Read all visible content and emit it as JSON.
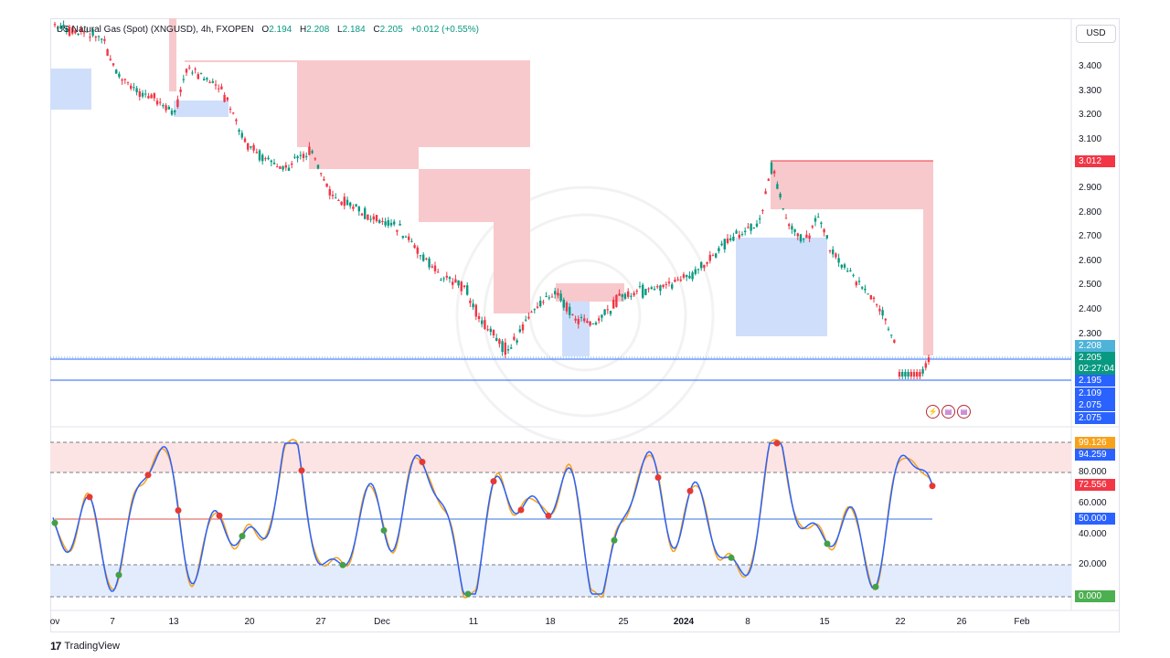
{
  "header": {
    "symbol": "US Natural Gas (Spot) (XNGUSD), 4h, FXOPEN",
    "o_key": "O",
    "o_val": "2.194",
    "h_key": "H",
    "h_val": "2.208",
    "l_key": "L",
    "l_val": "2.184",
    "c_key": "C",
    "c_val": "2.205",
    "change": "+0.012 (+0.55%)"
  },
  "currency": "USD",
  "price_axis": [
    "3.400",
    "3.300",
    "3.200",
    "3.100",
    "2.900",
    "2.800",
    "2.700",
    "2.600",
    "2.500",
    "2.400",
    "2.300"
  ],
  "price_tags": {
    "resistance": "3.012",
    "high": "2.208",
    "last": "2.205",
    "countdown": "02:27:04",
    "support1": "2.195",
    "support2": "2.109",
    "low1": "2.075",
    "low2": "2.075"
  },
  "osc_axis": [
    "80.000",
    "60.000",
    "40.000",
    "20.000"
  ],
  "osc_tags": {
    "top": "99.126",
    "k": "94.259",
    "level": "72.556",
    "mid": "50.000",
    "zero": "0.000"
  },
  "x_axis": [
    "ov",
    "7",
    "13",
    "20",
    "27",
    "Dec",
    "11",
    "18",
    "25",
    "2024",
    "8",
    "15",
    "22",
    "26",
    "Feb"
  ],
  "footer": {
    "brand": "TradingView"
  },
  "colors": {
    "up": "#089981",
    "down": "#f23645",
    "support_fill": "#cfdffb",
    "resistance_fill": "#f8c9cc",
    "blue_line": "#2962ff",
    "orange_line": "#f7a21b"
  },
  "chart_data": {
    "type": "candlestick",
    "timeframe": "4h",
    "close": 2.205,
    "resistance_zone": 3.012,
    "support_levels": [
      2.195,
      2.109,
      2.075
    ],
    "oscillator": {
      "overbought": 80,
      "oversold": 20,
      "mid": 50,
      "k": 94.259,
      "d": 99.126
    }
  }
}
